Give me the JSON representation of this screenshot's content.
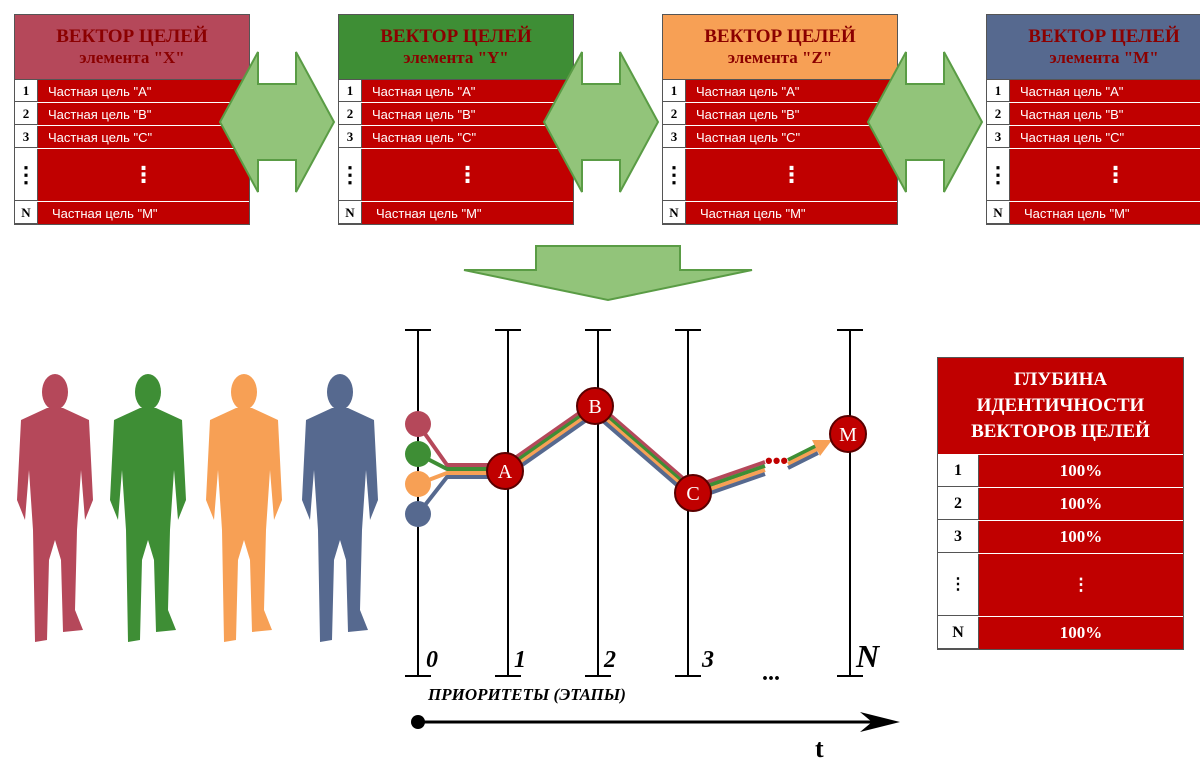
{
  "vectors": [
    {
      "title": "ВЕКТОР ЦЕЛЕЙ",
      "subtitle": "элемента \"X\"",
      "color": "#b5485a",
      "rows": [
        {
          "n": "1",
          "text": "Частная цель \"A\""
        },
        {
          "n": "2",
          "text": "Частная цель \"B\""
        },
        {
          "n": "3",
          "text": "Частная цель \"C\""
        },
        {
          "n": "⋮",
          "text": "⋮"
        },
        {
          "n": "N",
          "text": "Частная цель \"M\""
        }
      ]
    },
    {
      "title": "ВЕКТОР ЦЕЛЕЙ",
      "subtitle": "элемента \"Y\"",
      "color": "#3e8e35",
      "rows": [
        {
          "n": "1",
          "text": "Частная цель \"A\""
        },
        {
          "n": "2",
          "text": "Частная цель \"B\""
        },
        {
          "n": "3",
          "text": "Частная цель \"C\""
        },
        {
          "n": "⋮",
          "text": "⋮"
        },
        {
          "n": "N",
          "text": "Частная цель \"M\""
        }
      ]
    },
    {
      "title": "ВЕКТОР ЦЕЛЕЙ",
      "subtitle": "элемента \"Z\"",
      "color": "#f7a055",
      "rows": [
        {
          "n": "1",
          "text": "Частная цель \"A\""
        },
        {
          "n": "2",
          "text": "Частная цель \"B\""
        },
        {
          "n": "3",
          "text": "Частная цель \"C\""
        },
        {
          "n": "⋮",
          "text": "⋮"
        },
        {
          "n": "N",
          "text": "Частная цель \"M\""
        }
      ]
    },
    {
      "title": "ВЕКТОР ЦЕЛЕЙ",
      "subtitle": "элемента \"M\"",
      "color": "#56698f",
      "rows": [
        {
          "n": "1",
          "text": "Частная цель \"A\""
        },
        {
          "n": "2",
          "text": "Частная цель \"B\""
        },
        {
          "n": "3",
          "text": "Частная цель \"C\""
        },
        {
          "n": "⋮",
          "text": "⋮"
        },
        {
          "n": "N",
          "text": "Частная цель \"M\""
        }
      ]
    }
  ],
  "identity": {
    "title": "ГЛУБИНА ИДЕНТИЧНОСТИ ВЕКТОРОВ ЦЕЛЕЙ",
    "rows": [
      {
        "n": "1",
        "v": "100%"
      },
      {
        "n": "2",
        "v": "100%"
      },
      {
        "n": "3",
        "v": "100%"
      },
      {
        "n": "⋮",
        "v": "⋮"
      },
      {
        "n": "N",
        "v": "100%"
      }
    ]
  },
  "stages": {
    "labels": [
      "0",
      "1",
      "2",
      "3",
      "...",
      "N"
    ]
  },
  "nodes": [
    "A",
    "B",
    "C",
    "M"
  ],
  "path_gap": "•••",
  "priorities_label": "ПРИОРИТЕТЫ (ЭТАПЫ)",
  "time_label": "t",
  "people_colors": [
    "#b5485a",
    "#3e8e35",
    "#f7a055",
    "#56698f"
  ],
  "colors": {
    "red": "#c00000",
    "arrow_green": "#92c47a",
    "arrow_border": "#5a9c45"
  }
}
